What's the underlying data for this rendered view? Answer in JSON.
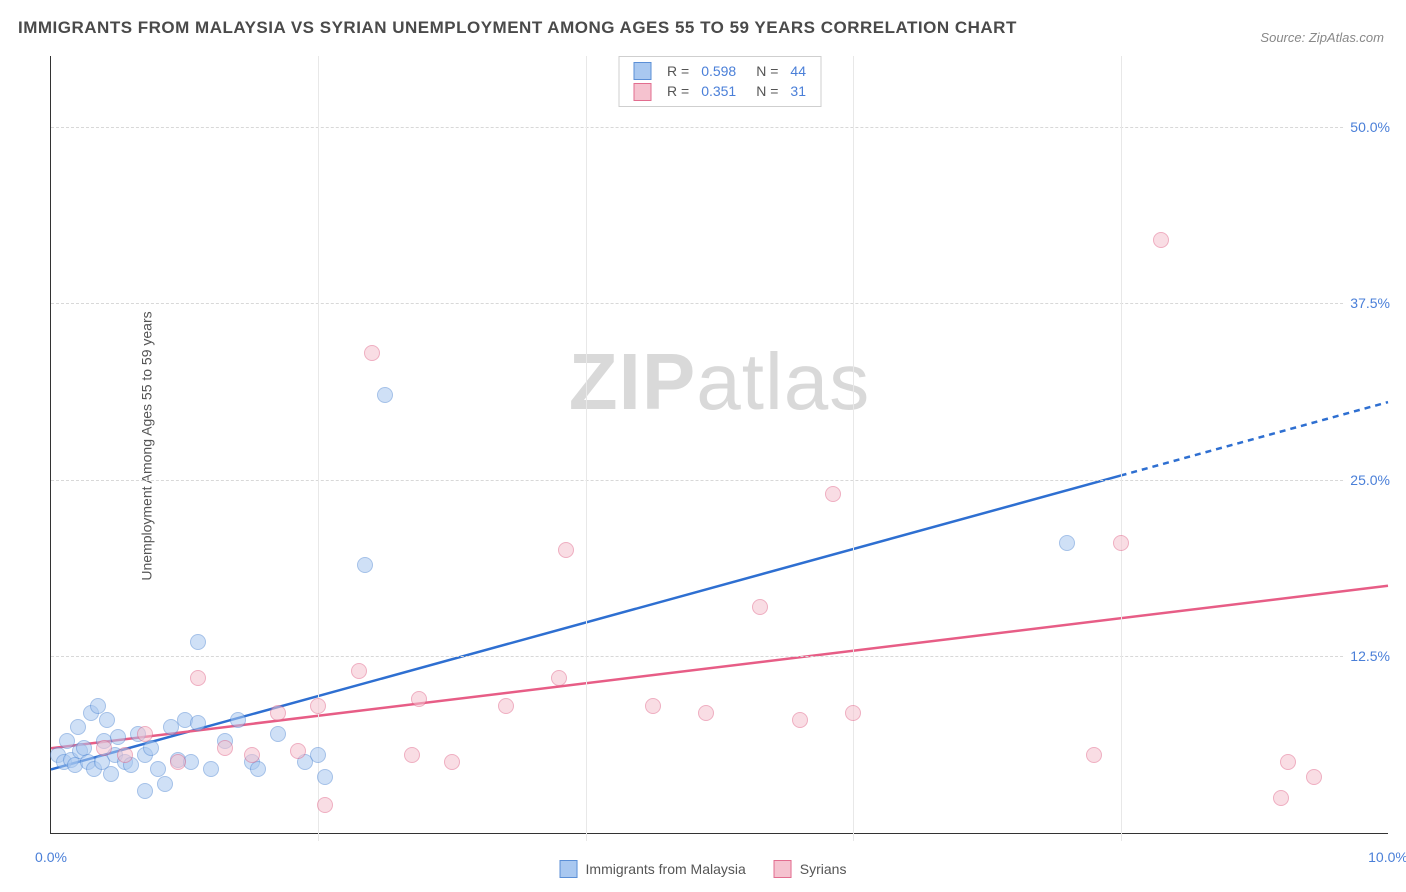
{
  "title": "IMMIGRANTS FROM MALAYSIA VS SYRIAN UNEMPLOYMENT AMONG AGES 55 TO 59 YEARS CORRELATION CHART",
  "source_label": "Source:",
  "source_value": "ZipAtlas.com",
  "watermark_a": "ZIP",
  "watermark_b": "atlas",
  "y_axis_title": "Unemployment Among Ages 55 to 59 years",
  "chart": {
    "type": "scatter",
    "xlim": [
      0,
      10
    ],
    "ylim": [
      0,
      55
    ],
    "xticks": [
      {
        "v": 0,
        "label": "0.0%"
      },
      {
        "v": 10,
        "label": "10.0%"
      }
    ],
    "xgrid": [
      2,
      4,
      6,
      8
    ],
    "yticks": [
      {
        "v": 12.5,
        "label": "12.5%"
      },
      {
        "v": 25.0,
        "label": "25.0%"
      },
      {
        "v": 37.5,
        "label": "37.5%"
      },
      {
        "v": 50.0,
        "label": "50.0%"
      }
    ],
    "background_color": "#ffffff",
    "grid_color": "#e8e8e8",
    "grid_dash_color": "#d8d8d8",
    "axis_color": "#333333",
    "tick_label_color": "#4a7fd8",
    "marker_radius": 8,
    "marker_opacity": 0.55,
    "series": [
      {
        "id": "malaysia",
        "label": "Immigrants from Malaysia",
        "fill": "#a9c8f0",
        "stroke": "#5b8fd6",
        "line_color": "#2e6fd1",
        "R": "0.598",
        "N": "44",
        "trend": {
          "x1": 0,
          "y1": 4.5,
          "x2": 10,
          "y2": 30.5,
          "dash_after_x": 8.0
        },
        "points": [
          {
            "x": 0.05,
            "y": 5.5
          },
          {
            "x": 0.1,
            "y": 5.0
          },
          {
            "x": 0.12,
            "y": 6.5
          },
          {
            "x": 0.15,
            "y": 5.2
          },
          {
            "x": 0.18,
            "y": 4.8
          },
          {
            "x": 0.2,
            "y": 7.5
          },
          {
            "x": 0.22,
            "y": 5.8
          },
          {
            "x": 0.25,
            "y": 6.0
          },
          {
            "x": 0.28,
            "y": 5.0
          },
          {
            "x": 0.3,
            "y": 8.5
          },
          {
            "x": 0.32,
            "y": 4.5
          },
          {
            "x": 0.35,
            "y": 9.0
          },
          {
            "x": 0.38,
            "y": 5.0
          },
          {
            "x": 0.4,
            "y": 6.5
          },
          {
            "x": 0.42,
            "y": 8.0
          },
          {
            "x": 0.45,
            "y": 4.2
          },
          {
            "x": 0.48,
            "y": 5.5
          },
          {
            "x": 0.5,
            "y": 6.8
          },
          {
            "x": 0.55,
            "y": 5.0
          },
          {
            "x": 0.6,
            "y": 4.8
          },
          {
            "x": 0.65,
            "y": 7.0
          },
          {
            "x": 0.7,
            "y": 3.0
          },
          {
            "x": 0.7,
            "y": 5.5
          },
          {
            "x": 0.75,
            "y": 6.0
          },
          {
            "x": 0.8,
            "y": 4.5
          },
          {
            "x": 0.85,
            "y": 3.5
          },
          {
            "x": 0.9,
            "y": 7.5
          },
          {
            "x": 0.95,
            "y": 5.2
          },
          {
            "x": 1.0,
            "y": 8.0
          },
          {
            "x": 1.05,
            "y": 5.0
          },
          {
            "x": 1.1,
            "y": 13.5
          },
          {
            "x": 1.1,
            "y": 7.8
          },
          {
            "x": 1.2,
            "y": 4.5
          },
          {
            "x": 1.3,
            "y": 6.5
          },
          {
            "x": 1.4,
            "y": 8.0
          },
          {
            "x": 1.5,
            "y": 5.0
          },
          {
            "x": 1.55,
            "y": 4.5
          },
          {
            "x": 1.7,
            "y": 7.0
          },
          {
            "x": 1.9,
            "y": 5.0
          },
          {
            "x": 2.0,
            "y": 5.5
          },
          {
            "x": 2.05,
            "y": 4.0
          },
          {
            "x": 2.35,
            "y": 19.0
          },
          {
            "x": 2.5,
            "y": 31.0
          },
          {
            "x": 7.6,
            "y": 20.5
          }
        ]
      },
      {
        "id": "syrians",
        "label": "Syrians",
        "fill": "#f5c2cf",
        "stroke": "#e26d8f",
        "line_color": "#e75d86",
        "R": "0.351",
        "N": "31",
        "trend": {
          "x1": 0,
          "y1": 6.0,
          "x2": 10,
          "y2": 17.5,
          "dash_after_x": 10
        },
        "points": [
          {
            "x": 0.4,
            "y": 6.0
          },
          {
            "x": 0.55,
            "y": 5.5
          },
          {
            "x": 0.7,
            "y": 7.0
          },
          {
            "x": 0.95,
            "y": 5.0
          },
          {
            "x": 1.1,
            "y": 11.0
          },
          {
            "x": 1.3,
            "y": 6.0
          },
          {
            "x": 1.5,
            "y": 5.5
          },
          {
            "x": 1.7,
            "y": 8.5
          },
          {
            "x": 1.85,
            "y": 5.8
          },
          {
            "x": 2.0,
            "y": 9.0
          },
          {
            "x": 2.05,
            "y": 2.0
          },
          {
            "x": 2.3,
            "y": 11.5
          },
          {
            "x": 2.4,
            "y": 34.0
          },
          {
            "x": 2.7,
            "y": 5.5
          },
          {
            "x": 2.75,
            "y": 9.5
          },
          {
            "x": 3.0,
            "y": 5.0
          },
          {
            "x": 3.4,
            "y": 9.0
          },
          {
            "x": 3.8,
            "y": 11.0
          },
          {
            "x": 3.85,
            "y": 20.0
          },
          {
            "x": 4.5,
            "y": 9.0
          },
          {
            "x": 4.9,
            "y": 8.5
          },
          {
            "x": 5.3,
            "y": 16.0
          },
          {
            "x": 5.6,
            "y": 8.0
          },
          {
            "x": 5.85,
            "y": 24.0
          },
          {
            "x": 6.0,
            "y": 8.5
          },
          {
            "x": 7.8,
            "y": 5.5
          },
          {
            "x": 8.0,
            "y": 20.5
          },
          {
            "x": 8.3,
            "y": 42.0
          },
          {
            "x": 9.2,
            "y": 2.5
          },
          {
            "x": 9.25,
            "y": 5.0
          },
          {
            "x": 9.45,
            "y": 4.0
          }
        ]
      }
    ]
  },
  "legend_top": {
    "r_label": "R =",
    "n_label": "N ="
  },
  "legend_bottom_labels": [
    "Immigrants from Malaysia",
    "Syrians"
  ]
}
